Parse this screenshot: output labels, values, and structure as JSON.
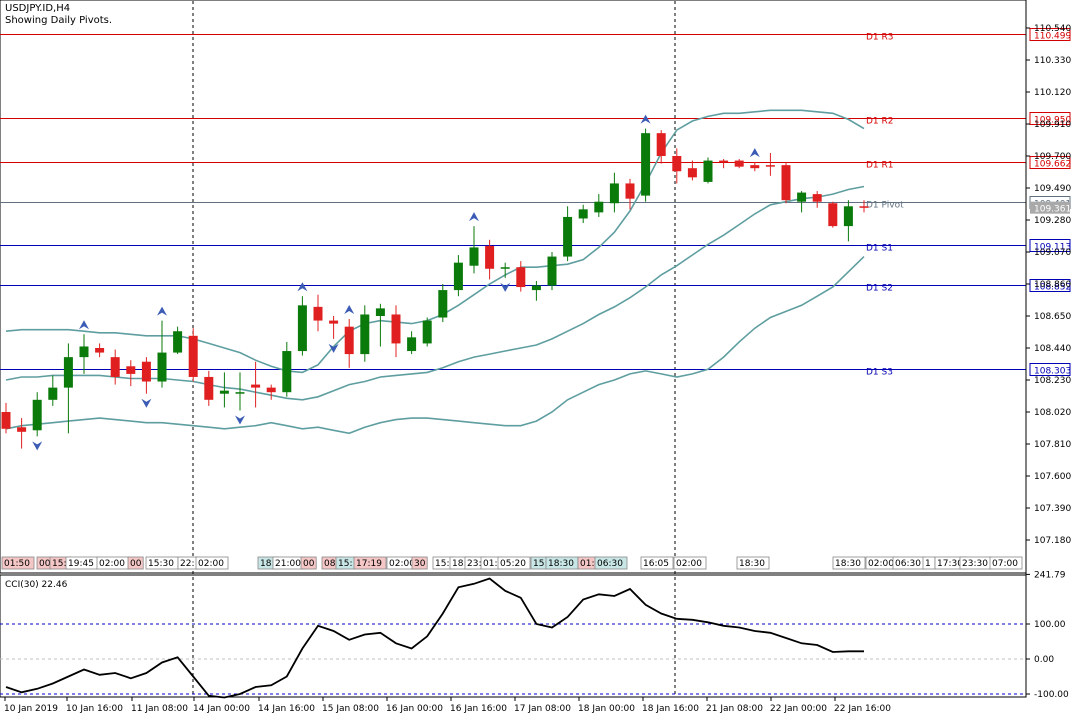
{
  "header": {
    "symbol": "USDJPY.ID,H4",
    "subtitle": "Showing Daily Pivots."
  },
  "colors": {
    "bull": "#0a7a0a",
    "bear": "#e02020",
    "band": "#5f9ea0",
    "pivot_res": "#d40000",
    "pivot_sup": "#0000b4",
    "pivot_p": "#607080",
    "arrow": "#3b5bb5",
    "grid_dash": "#000000",
    "cci": "#000000",
    "cci_level": "#0000cc"
  },
  "price_axis": {
    "ticks": [
      "110.540",
      "110.330",
      "110.120",
      "109.910",
      "109.700",
      "109.490",
      "109.280",
      "109.070",
      "108.860",
      "108.650",
      "108.440",
      "108.230",
      "108.020",
      "107.810",
      "107.600",
      "107.390",
      "107.180"
    ]
  },
  "pivots": [
    {
      "name": "D1 R3",
      "price": "110.499",
      "kind": "res"
    },
    {
      "name": "D1 R2",
      "price": "109.950",
      "kind": "res"
    },
    {
      "name": "D1 R1",
      "price": "109.662",
      "kind": "res"
    },
    {
      "name": "D1 Pivot",
      "price": "109.401",
      "kind": "pivot"
    },
    {
      "name": "D1 S1",
      "price": "109.113",
      "kind": "sup"
    },
    {
      "name": "D1 S2",
      "price": "108.852",
      "kind": "sup"
    },
    {
      "name": "D1 S3",
      "price": "108.303",
      "kind": "sup"
    }
  ],
  "current_price": "109.361",
  "time_badges": [
    "01:50",
    "00",
    "15:",
    "19:45",
    "02:00",
    "00",
    "15:30",
    "22:",
    "02:00",
    "18:",
    "21:00",
    "00",
    "08:",
    "15:",
    "17:19",
    "02:00",
    "30",
    "15:",
    "18:",
    "23:",
    "01:",
    "05:20",
    "15:",
    "18:30",
    "01:",
    "06:30",
    "16:05",
    "02:00",
    "18:30",
    "18:30",
    "02:00",
    "06:30",
    "1",
    "17:30",
    "23:30",
    "07:00"
  ],
  "cci": {
    "label": "CCI(30) 22.46",
    "ticks": [
      "241.79",
      "100.00",
      "0.00",
      "-100.00"
    ],
    "level_upper": 100,
    "level_lower": -100
  },
  "time_axis": [
    "10 Jan 2019",
    "10 Jan 16:00",
    "11 Jan 08:00",
    "14 Jan 00:00",
    "14 Jan 16:00",
    "15 Jan 08:00",
    "16 Jan 00:00",
    "16 Jan 16:00",
    "17 Jan 08:00",
    "18 Jan 00:00",
    "18 Jan 16:00",
    "21 Jan 08:00",
    "22 Jan 00:00",
    "22 Jan 16:00"
  ],
  "chart_data": {
    "type": "candlestick",
    "symbol": "USDJPY.ID",
    "timeframe": "H4",
    "candles": [
      {
        "o": 108.02,
        "h": 108.08,
        "l": 107.88,
        "c": 107.91
      },
      {
        "o": 107.92,
        "h": 107.98,
        "l": 107.78,
        "c": 107.89
      },
      {
        "o": 107.9,
        "h": 108.15,
        "l": 107.86,
        "c": 108.1
      },
      {
        "o": 108.1,
        "h": 108.26,
        "l": 108.06,
        "c": 108.18
      },
      {
        "o": 108.18,
        "h": 108.47,
        "l": 107.88,
        "c": 108.38
      },
      {
        "o": 108.38,
        "h": 108.53,
        "l": 108.27,
        "c": 108.45
      },
      {
        "o": 108.44,
        "h": 108.47,
        "l": 108.38,
        "c": 108.41
      },
      {
        "o": 108.38,
        "h": 108.43,
        "l": 108.2,
        "c": 108.25
      },
      {
        "o": 108.32,
        "h": 108.36,
        "l": 108.19,
        "c": 108.27
      },
      {
        "o": 108.35,
        "h": 108.38,
        "l": 108.14,
        "c": 108.22
      },
      {
        "o": 108.22,
        "h": 108.62,
        "l": 108.18,
        "c": 108.41
      },
      {
        "o": 108.41,
        "h": 108.58,
        "l": 108.4,
        "c": 108.55
      },
      {
        "o": 108.52,
        "h": 108.57,
        "l": 108.22,
        "c": 108.25
      },
      {
        "o": 108.25,
        "h": 108.29,
        "l": 108.06,
        "c": 108.1
      },
      {
        "o": 108.14,
        "h": 108.28,
        "l": 108.05,
        "c": 108.16
      },
      {
        "o": 108.15,
        "h": 108.28,
        "l": 108.03,
        "c": 108.15
      },
      {
        "o": 108.2,
        "h": 108.35,
        "l": 108.05,
        "c": 108.18
      },
      {
        "o": 108.18,
        "h": 108.2,
        "l": 108.1,
        "c": 108.15
      },
      {
        "o": 108.15,
        "h": 108.48,
        "l": 108.12,
        "c": 108.42
      },
      {
        "o": 108.42,
        "h": 108.78,
        "l": 108.39,
        "c": 108.72
      },
      {
        "o": 108.71,
        "h": 108.79,
        "l": 108.55,
        "c": 108.62
      },
      {
        "o": 108.62,
        "h": 108.65,
        "l": 108.5,
        "c": 108.6
      },
      {
        "o": 108.58,
        "h": 108.63,
        "l": 108.31,
        "c": 108.4
      },
      {
        "o": 108.4,
        "h": 108.72,
        "l": 108.35,
        "c": 108.66
      },
      {
        "o": 108.65,
        "h": 108.73,
        "l": 108.45,
        "c": 108.7
      },
      {
        "o": 108.66,
        "h": 108.72,
        "l": 108.38,
        "c": 108.47
      },
      {
        "o": 108.42,
        "h": 108.55,
        "l": 108.4,
        "c": 108.51
      },
      {
        "o": 108.47,
        "h": 108.64,
        "l": 108.45,
        "c": 108.62
      },
      {
        "o": 108.64,
        "h": 108.86,
        "l": 108.61,
        "c": 108.82
      },
      {
        "o": 108.82,
        "h": 109.05,
        "l": 108.78,
        "c": 109.0
      },
      {
        "o": 108.98,
        "h": 109.24,
        "l": 108.93,
        "c": 109.1
      },
      {
        "o": 109.11,
        "h": 109.15,
        "l": 108.89,
        "c": 108.96
      },
      {
        "o": 108.96,
        "h": 109.0,
        "l": 108.9,
        "c": 108.97
      },
      {
        "o": 108.97,
        "h": 109.01,
        "l": 108.81,
        "c": 108.84
      },
      {
        "o": 108.82,
        "h": 108.88,
        "l": 108.75,
        "c": 108.85
      },
      {
        "o": 108.85,
        "h": 109.07,
        "l": 108.82,
        "c": 109.04
      },
      {
        "o": 109.04,
        "h": 109.37,
        "l": 109.01,
        "c": 109.3
      },
      {
        "o": 109.29,
        "h": 109.38,
        "l": 109.26,
        "c": 109.35
      },
      {
        "o": 109.33,
        "h": 109.45,
        "l": 109.3,
        "c": 109.4
      },
      {
        "o": 109.39,
        "h": 109.59,
        "l": 109.33,
        "c": 109.52
      },
      {
        "o": 109.52,
        "h": 109.55,
        "l": 109.35,
        "c": 109.42
      },
      {
        "o": 109.44,
        "h": 109.88,
        "l": 109.4,
        "c": 109.85
      },
      {
        "o": 109.85,
        "h": 109.87,
        "l": 109.65,
        "c": 109.7
      },
      {
        "o": 109.7,
        "h": 109.75,
        "l": 109.52,
        "c": 109.6
      },
      {
        "o": 109.62,
        "h": 109.67,
        "l": 109.54,
        "c": 109.56
      },
      {
        "o": 109.53,
        "h": 109.69,
        "l": 109.52,
        "c": 109.67
      },
      {
        "o": 109.67,
        "h": 109.68,
        "l": 109.62,
        "c": 109.66
      },
      {
        "o": 109.67,
        "h": 109.68,
        "l": 109.62,
        "c": 109.63
      },
      {
        "o": 109.64,
        "h": 109.66,
        "l": 109.6,
        "c": 109.62
      },
      {
        "o": 109.64,
        "h": 109.72,
        "l": 109.57,
        "c": 109.63
      },
      {
        "o": 109.64,
        "h": 109.66,
        "l": 109.39,
        "c": 109.41
      },
      {
        "o": 109.4,
        "h": 109.47,
        "l": 109.33,
        "c": 109.46
      },
      {
        "o": 109.45,
        "h": 109.47,
        "l": 109.36,
        "c": 109.4
      },
      {
        "o": 109.39,
        "h": 109.4,
        "l": 109.23,
        "c": 109.24
      },
      {
        "o": 109.24,
        "h": 109.41,
        "l": 109.14,
        "c": 109.37
      },
      {
        "o": 109.37,
        "h": 109.41,
        "l": 109.33,
        "c": 109.36
      }
    ],
    "bollinger_upper": [
      108.55,
      108.56,
      108.56,
      108.56,
      108.56,
      108.55,
      108.54,
      108.54,
      108.53,
      108.52,
      108.52,
      108.52,
      108.5,
      108.47,
      108.44,
      108.41,
      108.36,
      108.32,
      108.29,
      108.28,
      108.33,
      108.45,
      108.55,
      108.6,
      108.62,
      108.61,
      108.6,
      108.62,
      108.66,
      108.72,
      108.79,
      108.86,
      108.92,
      108.97,
      108.97,
      108.98,
      108.99,
      109.02,
      109.1,
      109.2,
      109.34,
      109.52,
      109.72,
      109.87,
      109.93,
      109.96,
      109.98,
      109.98,
      109.99,
      110.0,
      110.0,
      110.0,
      109.99,
      109.98,
      109.94,
      109.88
    ],
    "bollinger_middle": [
      108.23,
      108.25,
      108.25,
      108.26,
      108.26,
      108.26,
      108.26,
      108.25,
      108.24,
      108.24,
      108.24,
      108.23,
      108.22,
      108.2,
      108.18,
      108.17,
      108.15,
      108.13,
      108.11,
      108.1,
      108.12,
      108.16,
      108.2,
      108.22,
      108.25,
      108.26,
      108.27,
      108.28,
      108.31,
      108.35,
      108.38,
      108.4,
      108.42,
      108.44,
      108.46,
      108.5,
      108.55,
      108.6,
      108.66,
      108.71,
      108.77,
      108.84,
      108.92,
      108.98,
      109.05,
      109.12,
      109.18,
      109.25,
      109.32,
      109.38,
      109.4,
      109.42,
      109.43,
      109.45,
      109.48,
      109.5
    ],
    "bollinger_lower": [
      107.91,
      107.93,
      107.94,
      107.95,
      107.96,
      107.97,
      107.98,
      107.97,
      107.96,
      107.95,
      107.95,
      107.94,
      107.93,
      107.92,
      107.91,
      107.92,
      107.93,
      107.95,
      107.93,
      107.91,
      107.92,
      107.9,
      107.88,
      107.92,
      107.95,
      107.97,
      107.98,
      107.98,
      107.97,
      107.96,
      107.95,
      107.94,
      107.93,
      107.93,
      107.96,
      108.02,
      108.1,
      108.15,
      108.2,
      108.23,
      108.27,
      108.29,
      108.27,
      108.25,
      108.27,
      108.3,
      108.38,
      108.48,
      108.57,
      108.64,
      108.68,
      108.72,
      108.78,
      108.84,
      108.94,
      109.04
    ],
    "cci_values": [
      -80,
      -95,
      -85,
      -70,
      -50,
      -30,
      -45,
      -40,
      -55,
      -40,
      -10,
      5,
      -50,
      -105,
      -110,
      -100,
      -80,
      -75,
      -50,
      30,
      95,
      80,
      55,
      70,
      75,
      45,
      30,
      65,
      130,
      205,
      215,
      230,
      195,
      175,
      100,
      90,
      120,
      170,
      185,
      180,
      200,
      155,
      130,
      115,
      112,
      105,
      95,
      90,
      80,
      75,
      60,
      45,
      40,
      20,
      22,
      22
    ],
    "fractal_up": [
      5,
      10,
      19,
      22,
      30,
      41,
      48
    ],
    "fractal_down": [
      2,
      9,
      15,
      21,
      32
    ]
  }
}
